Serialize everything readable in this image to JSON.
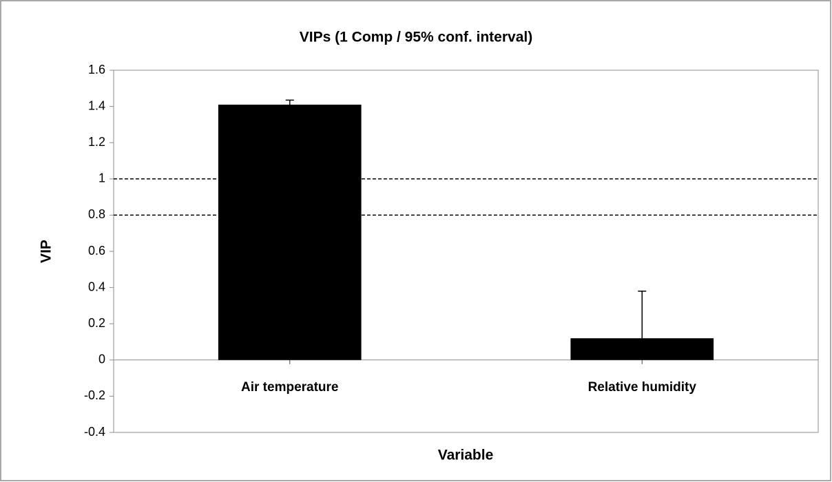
{
  "chart_data": {
    "type": "bar",
    "title": "VIPs (1 Comp / 95% conf. interval)",
    "x_label": "Variable",
    "y_label": "VIP",
    "categories": [
      "Air temperature",
      "Relative humidity"
    ],
    "values": [
      1.41,
      0.12
    ],
    "errors": [
      0.025,
      0.26
    ],
    "color": "#000000",
    "ylim": [
      -0.4,
      1.6
    ],
    "yticks": [
      -0.4,
      -0.2,
      0,
      0.2,
      0.4,
      0.6,
      0.8,
      1,
      1.2,
      1.4,
      1.6
    ],
    "reference_lines": [
      1,
      0.8
    ],
    "grid": false
  }
}
